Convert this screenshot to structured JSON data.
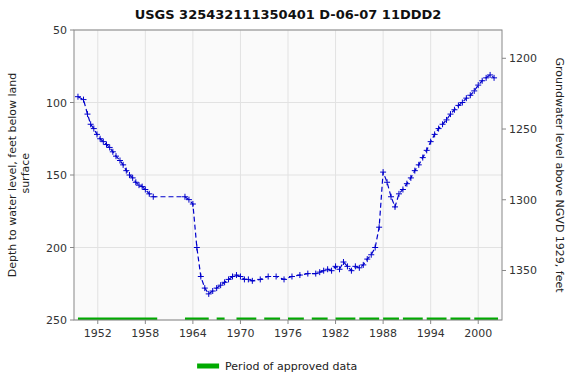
{
  "chart_data": {
    "type": "line",
    "title": "USGS 325432111350401 D-06-07 11DDD2",
    "ylabel": "Depth to water level, feet below land\n surface",
    "y2label": "Groundwater level above NGVD 1929, feet",
    "xlim": [
      1949,
      2003
    ],
    "xticks": [
      1952,
      1958,
      1964,
      1970,
      1976,
      1982,
      1988,
      1994,
      2000
    ],
    "ylim": [
      250,
      50
    ],
    "yticks": [
      50,
      100,
      150,
      200,
      250
    ],
    "y2lim": [
      1385,
      1180
    ],
    "y2ticks": [
      1200,
      1250,
      1300,
      1350
    ],
    "grid": true,
    "legend": "bottom",
    "x": [
      1949.5,
      1950.2,
      1950.7,
      1951.1,
      1951.5,
      1951.9,
      1952.3,
      1952.7,
      1953.1,
      1953.5,
      1953.9,
      1954.3,
      1954.8,
      1955.2,
      1955.6,
      1956.0,
      1956.4,
      1956.8,
      1957.2,
      1957.6,
      1958.0,
      1958.5,
      1959.0,
      1963.0,
      1963.5,
      1964.0,
      1964.5,
      1965.0,
      1965.5,
      1966.0,
      1966.5,
      1967.0,
      1967.5,
      1968.0,
      1968.5,
      1969.0,
      1969.5,
      1970.0,
      1970.5,
      1971.0,
      1971.5,
      1972.5,
      1973.5,
      1974.5,
      1975.5,
      1976.5,
      1977.5,
      1978.5,
      1979.5,
      1980.0,
      1980.5,
      1981.0,
      1981.5,
      1982.0,
      1982.5,
      1983.0,
      1983.5,
      1984.0,
      1984.5,
      1985.0,
      1985.5,
      1986.0,
      1986.5,
      1987.0,
      1987.5,
      1988.0,
      1988.5,
      1989.0,
      1989.5,
      1990.0,
      1990.5,
      1991.0,
      1991.5,
      1992.0,
      1992.5,
      1993.0,
      1993.5,
      1994.0,
      1994.5,
      1995.0,
      1995.5,
      1996.0,
      1996.5,
      1997.0,
      1997.5,
      1998.0,
      1998.5,
      1999.0,
      1999.5,
      2000.0,
      2000.5,
      2001.0,
      2001.5,
      2002.0
    ],
    "series": [
      {
        "color": "#0000cc",
        "line_style": "dashed",
        "marker": "plus",
        "values": [
          96,
          98,
          108,
          115,
          118,
          122,
          125,
          127,
          129,
          131,
          134,
          137,
          140,
          143,
          147,
          150,
          152,
          155,
          157,
          158,
          160,
          163,
          165,
          165,
          167,
          170,
          200,
          220,
          228,
          232,
          230,
          228,
          226,
          224,
          222,
          220,
          219,
          220,
          222,
          222,
          223,
          222,
          220,
          220,
          222,
          220,
          219,
          218,
          218,
          217,
          216,
          215,
          216,
          213,
          215,
          210,
          213,
          216,
          213,
          214,
          212,
          208,
          205,
          200,
          186,
          148,
          155,
          165,
          172,
          163,
          160,
          156,
          152,
          147,
          143,
          138,
          133,
          127,
          122,
          118,
          115,
          112,
          108,
          105,
          102,
          100,
          97,
          95,
          92,
          88,
          85,
          83,
          81,
          83
        ]
      },
      {
        "name": "Period of approved data",
        "color": "#00aa00",
        "type": "segments",
        "y": 250,
        "segments": [
          [
            1949.5,
            1959.5
          ],
          [
            1963.0,
            1966.0
          ],
          [
            1967.0,
            1968.0
          ],
          [
            1969.5,
            1972.0
          ],
          [
            1973.0,
            1975.0
          ],
          [
            1976.0,
            1978.0
          ],
          [
            1979.0,
            1981.0
          ],
          [
            1982.0,
            1984.5
          ],
          [
            1985.0,
            1987.5
          ],
          [
            1988.0,
            1990.0
          ],
          [
            1990.5,
            1993.0
          ],
          [
            1993.5,
            1996.0
          ],
          [
            1996.5,
            1999.0
          ],
          [
            1999.5,
            2002.5
          ]
        ]
      }
    ]
  }
}
